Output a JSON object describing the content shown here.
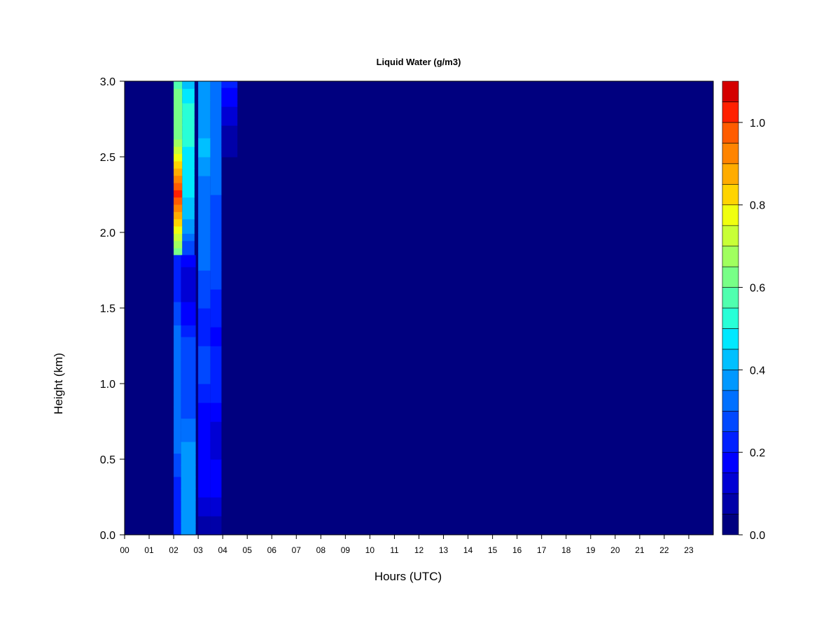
{
  "chart_data": {
    "type": "heatmap",
    "title": "Liquid Water (g/m3)",
    "xlabel": "Hours (UTC)",
    "ylabel": "Height (km)",
    "x_ticks": [
      "00",
      "01",
      "02",
      "03",
      "04",
      "05",
      "06",
      "07",
      "08",
      "09",
      "10",
      "11",
      "12",
      "13",
      "14",
      "15",
      "16",
      "17",
      "18",
      "19",
      "20",
      "21",
      "22",
      "23"
    ],
    "xlim": [
      0,
      24
    ],
    "y_ticks": [
      "0.0",
      "0.5",
      "1.0",
      "1.5",
      "2.0",
      "2.5",
      "3.0"
    ],
    "ylim": [
      0,
      3
    ],
    "colorbar": {
      "levels": [
        0.0,
        0.05,
        0.1,
        0.15,
        0.2,
        0.25,
        0.3,
        0.35,
        0.4,
        0.45,
        0.5,
        0.55,
        0.6,
        0.65,
        0.7,
        0.75,
        0.8,
        0.85,
        0.9,
        0.95,
        1.0,
        1.05,
        1.1
      ],
      "colors": [
        "#00007F",
        "#0000A8",
        "#0000D4",
        "#0000FF",
        "#0020FF",
        "#0048FF",
        "#0070FF",
        "#0098FF",
        "#00C0FF",
        "#00E8FF",
        "#28FFD7",
        "#50FFAF",
        "#78FF87",
        "#A0FF5F",
        "#C8FF37",
        "#F0FF0F",
        "#FFD400",
        "#FFAC00",
        "#FF8400",
        "#FF5C00",
        "#FF2000",
        "#D40000",
        "#7F0000"
      ],
      "tick_labels": [
        "0.0",
        "0.2",
        "0.4",
        "0.6",
        "0.8",
        "1.0"
      ],
      "tick_values": [
        0.0,
        0.2,
        0.4,
        0.6,
        0.8,
        1.0
      ]
    },
    "background_value": 0.0,
    "features": [
      {
        "x_start": 2.0,
        "x_end": 2.35,
        "y_bottom": 1.85,
        "y_top": 3.0,
        "peak_value": 0.95,
        "peak_height": 2.25
      },
      {
        "x_start": 2.35,
        "x_end": 2.85,
        "y_bottom": 1.85,
        "y_top": 3.0,
        "peak_value": 0.55,
        "peak_height": 2.6
      },
      {
        "x_start": 2.0,
        "x_end": 2.3,
        "y_bottom": 0.0,
        "y_top": 1.85,
        "peak_value": 0.35,
        "peak_height": 0.9
      },
      {
        "x_start": 2.3,
        "x_end": 2.9,
        "y_bottom": 0.0,
        "y_top": 1.85,
        "peak_value": 0.4,
        "peak_height": 0.2
      },
      {
        "x_start": 3.0,
        "x_end": 3.5,
        "y_bottom": 0.0,
        "y_top": 3.0,
        "peak_value": 0.4,
        "peak_height": 2.8
      },
      {
        "x_start": 3.5,
        "x_end": 3.95,
        "y_bottom": 0.0,
        "y_top": 3.0,
        "peak_value": 0.35,
        "peak_height": 2.8
      },
      {
        "x_start": 3.95,
        "x_end": 4.6,
        "y_bottom": 2.5,
        "y_top": 3.0,
        "peak_value": 0.2,
        "peak_height": 3.0
      }
    ]
  }
}
